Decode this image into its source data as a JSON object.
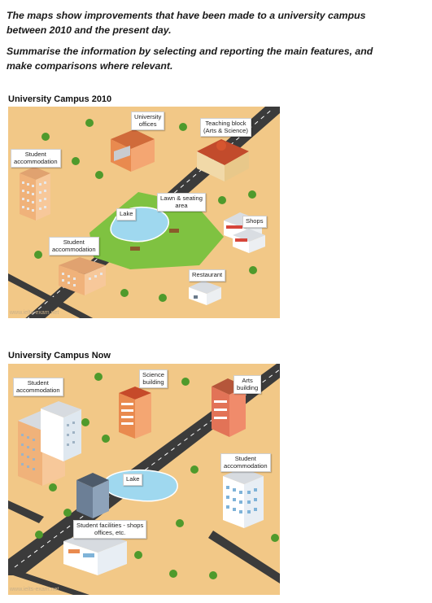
{
  "task": {
    "line1": "The maps show improvements that have been made to a university campus",
    "line2": "between 2010 and the present day.",
    "line3": "Summarise the information by selecting and reporting the main features, and",
    "line4": "make comparisons where relevant."
  },
  "map2010": {
    "title": "University Campus 2010",
    "labels": {
      "university_offices": [
        "University",
        "offices"
      ],
      "teaching_block": [
        "Teaching block",
        "(Arts & Science)"
      ],
      "student_accommodation_1": [
        "Student",
        "accommodation"
      ],
      "lawn": [
        "Lawn & seating",
        "area"
      ],
      "lake": "Lake",
      "shops": "Shops",
      "student_accommodation_2": [
        "Student",
        "accommodation"
      ],
      "restaurant": "Restaurant"
    },
    "watermark": "www.ielts-exam.net"
  },
  "mapNow": {
    "title": "University Campus Now",
    "labels": {
      "student_accommodation_1": [
        "Student",
        "accommodation"
      ],
      "science_building": [
        "Science",
        "building"
      ],
      "arts_building": [
        "Arts",
        "building"
      ],
      "lake": "Lake",
      "student_accommodation_2": [
        "Student",
        "accommodation"
      ],
      "student_facilities": [
        "Student facilities - shops",
        "offices, etc."
      ]
    },
    "watermark": "www.ielts-exam.net"
  },
  "colors": {
    "ground": "#f2c887",
    "road": "#3b3b3b",
    "lawn": "#7fc241",
    "lake": "#9fd8ef",
    "tree": "#4f9a2c",
    "building_orange": "#e98a4f",
    "building_grey": "#b9bec4"
  }
}
